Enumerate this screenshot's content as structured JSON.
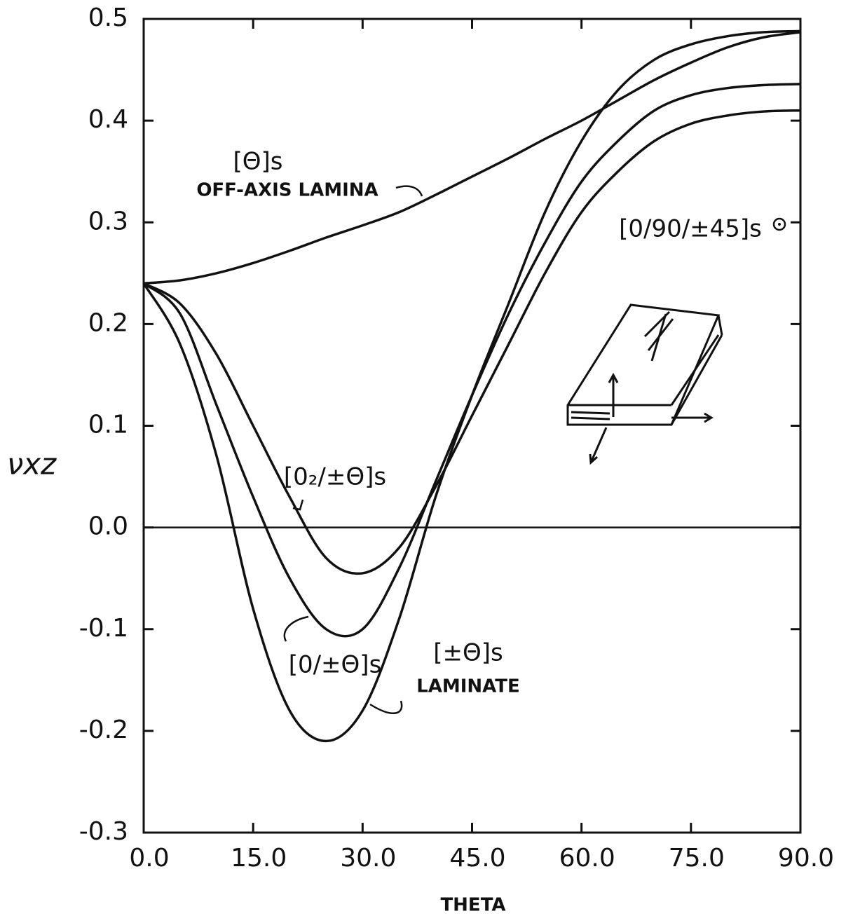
{
  "chart_data": {
    "type": "line",
    "x_label": "THETA",
    "y_label": "νxz",
    "x": [
      0,
      5,
      10,
      15,
      20,
      25,
      30,
      35,
      40,
      45,
      50,
      55,
      60,
      65,
      70,
      75,
      80,
      85,
      90
    ],
    "series": [
      {
        "name": "[Θ]s",
        "color": "#111111",
        "values": [
          0.24,
          0.243,
          0.25,
          0.26,
          0.272,
          0.285,
          0.297,
          0.31,
          0.327,
          0.345,
          0.363,
          0.382,
          0.4,
          0.42,
          0.44,
          0.457,
          0.472,
          0.482,
          0.487
        ]
      },
      {
        "name": "[±Θ]s",
        "color": "#111111",
        "values": [
          0.24,
          0.18,
          0.07,
          -0.08,
          -0.18,
          -0.21,
          -0.18,
          -0.09,
          0.03,
          0.13,
          0.22,
          0.31,
          0.38,
          0.43,
          0.46,
          0.475,
          0.483,
          0.487,
          0.488
        ]
      },
      {
        "name": "[0/±Θ]s",
        "color": "#111111",
        "values": [
          0.24,
          0.21,
          0.12,
          0.03,
          -0.05,
          -0.1,
          -0.1,
          -0.04,
          0.045,
          0.13,
          0.21,
          0.28,
          0.34,
          0.38,
          0.41,
          0.425,
          0.432,
          0.435,
          0.436
        ]
      },
      {
        "name": "[0₂/±Θ]s",
        "color": "#111111",
        "values": [
          0.24,
          0.22,
          0.17,
          0.1,
          0.03,
          -0.03,
          -0.045,
          -0.02,
          0.04,
          0.11,
          0.18,
          0.25,
          0.31,
          0.35,
          0.38,
          0.397,
          0.405,
          0.409,
          0.41
        ]
      }
    ],
    "annotations": [
      "OFF-AXIS LAMINA",
      "LAMINATE",
      "[0/90/±45]s"
    ],
    "xlim": [
      0,
      90
    ],
    "ylim": [
      -0.3,
      0.5
    ],
    "xticks": [
      {
        "value": 0,
        "label": "0.0"
      },
      {
        "value": 15,
        "label": "15.0"
      },
      {
        "value": 30,
        "label": "30.0"
      },
      {
        "value": 45,
        "label": "45.0"
      },
      {
        "value": 60,
        "label": "60.0"
      },
      {
        "value": 75,
        "label": "75.0"
      },
      {
        "value": 90,
        "label": "90.0"
      }
    ],
    "yticks": [
      -0.3,
      -0.2,
      -0.1,
      {
        "value": 0,
        "label": "0.0"
      },
      0.1,
      0.2,
      0.3,
      0.4,
      0.5
    ],
    "zero_line": true
  }
}
